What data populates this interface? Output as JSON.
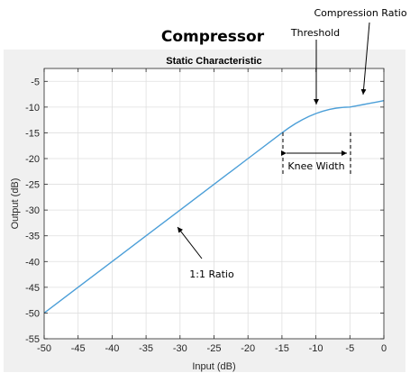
{
  "figure": {
    "main_title": "Compressor"
  },
  "chart_data": {
    "type": "line",
    "title": "Static Characteristic",
    "xlabel": "Input (dB)",
    "ylabel": "Output (dB)",
    "xlim": [
      -50,
      0
    ],
    "ylim": [
      -55,
      -2.5
    ],
    "xticks": [
      -50,
      -45,
      -40,
      -35,
      -30,
      -25,
      -20,
      -15,
      -10,
      -5,
      0
    ],
    "yticks": [
      -55,
      -50,
      -45,
      -40,
      -35,
      -30,
      -25,
      -20,
      -15,
      -10,
      -5
    ],
    "grid": true,
    "series": [
      {
        "color": "#4c9fd8",
        "x": [
          -50,
          -45,
          -40,
          -35,
          -30,
          -25,
          -20,
          -15,
          -14,
          -13,
          -12,
          -11,
          -10,
          -9,
          -8,
          -7,
          -6,
          -5,
          -4,
          -3,
          -2,
          -1,
          0
        ],
        "y": [
          -50,
          -45,
          -40,
          -35,
          -30,
          -25,
          -20,
          -15,
          -14.05,
          -13.2,
          -12.45,
          -11.8,
          -11.25,
          -10.8,
          -10.45,
          -10.2,
          -10.05,
          -10.0,
          -9.75,
          -9.5,
          -9.25,
          -9.0,
          -8.75
        ]
      }
    ],
    "annotations": [
      {
        "text": "Threshold",
        "x": -10,
        "y": -10.5
      },
      {
        "text": "Compression Ratio",
        "x": -4,
        "y": -9.3
      },
      {
        "text": "Knee Width",
        "x_start": -15,
        "x_end": -5,
        "y": -19
      },
      {
        "text": "1:1 Ratio",
        "x": -31,
        "y": -30.5
      }
    ]
  }
}
